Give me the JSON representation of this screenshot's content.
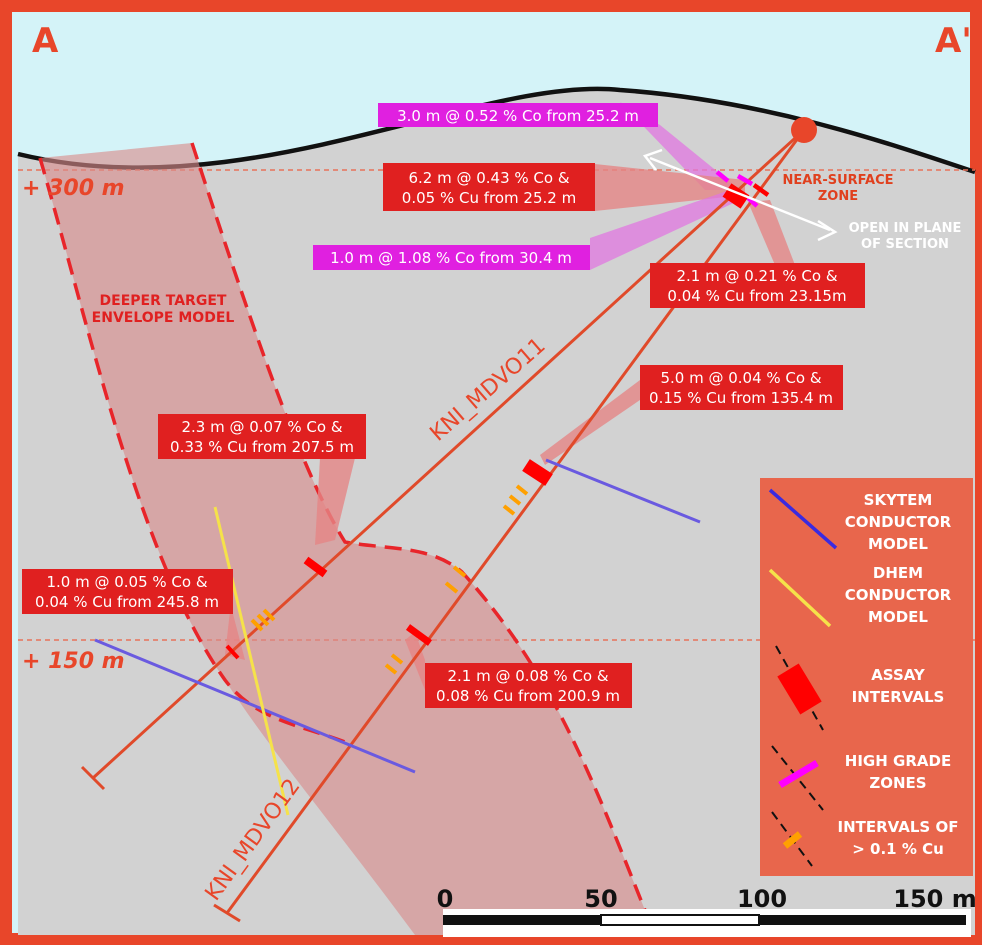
{
  "colors": {
    "frame": "#e8462a",
    "sky": "#d4f3f8",
    "ground": "#d2d2d2",
    "envelope": "#d98a8a",
    "drillhole": "#e04a2a",
    "assay": "#ff0000",
    "high_grade": "#ff00ff",
    "cu_interval": "#ffa000",
    "skytem": "#6a5ae0",
    "dhem": "#f5e24a",
    "legend_bg": "#e8664c",
    "label_red": "#e02020",
    "label_magenta": "#e020e0",
    "zone_text": "#e0401e"
  },
  "corners": {
    "left": "A",
    "right": "A'"
  },
  "elevations": [
    {
      "id": "e300",
      "label": "+ 300 m"
    },
    {
      "id": "e150",
      "label": "+ 150 m"
    }
  ],
  "envelope_label": [
    "DEEPER TARGET",
    "ENVELOPE MODEL"
  ],
  "near_surface_label": [
    "NEAR-SURFACE",
    "ZONE"
  ],
  "open_label": [
    "OPEN IN PLANE",
    "OF SECTION"
  ],
  "drillholes": [
    {
      "id": "dh1",
      "name": "KNI_MDVO11"
    },
    {
      "id": "dh2",
      "name": "KNI_MDVO12"
    }
  ],
  "callouts": [
    {
      "id": "c1",
      "color": "magenta",
      "lines": [
        "3.0 m @ 0.52 % Co from 25.2 m"
      ]
    },
    {
      "id": "c2",
      "color": "red",
      "lines": [
        "6.2 m @ 0.43 % Co &",
        "0.05 % Cu from 25.2 m"
      ]
    },
    {
      "id": "c3",
      "color": "magenta",
      "lines": [
        "1.0 m @ 1.08 % Co from 30.4 m"
      ]
    },
    {
      "id": "c4",
      "color": "red",
      "lines": [
        "2.1 m @ 0.21 % Co &",
        "0.04 % Cu from 23.15m"
      ]
    },
    {
      "id": "c5",
      "color": "red",
      "lines": [
        "5.0 m @ 0.04 % Co &",
        "0.15 % Cu from 135.4 m"
      ]
    },
    {
      "id": "c6",
      "color": "red",
      "lines": [
        "2.3 m @ 0.07 % Co &",
        "0.33 % Cu from 207.5 m"
      ]
    },
    {
      "id": "c7",
      "color": "red",
      "lines": [
        "1.0 m @ 0.05 % Co &",
        "0.04 % Cu from 245.8 m"
      ]
    },
    {
      "id": "c8",
      "color": "red",
      "lines": [
        "2.1 m @ 0.08 % Co &",
        "0.08 % Cu from 200.9 m"
      ]
    }
  ],
  "legend": [
    {
      "id": "skytem",
      "lines": [
        "SKYTEM",
        "CONDUCTOR",
        "MODEL"
      ]
    },
    {
      "id": "dhem",
      "lines": [
        "DHEM",
        "CONDUCTOR",
        "MODEL"
      ]
    },
    {
      "id": "assay",
      "lines": [
        "ASSAY",
        "INTERVALS"
      ]
    },
    {
      "id": "highgrade",
      "lines": [
        "HIGH GRADE",
        "ZONES"
      ]
    },
    {
      "id": "cu",
      "lines": [
        "INTERVALS OF",
        "> 0.1 % Cu"
      ]
    }
  ],
  "scale_bar": {
    "ticks": [
      "0",
      "50",
      "100",
      "150 m"
    ]
  }
}
